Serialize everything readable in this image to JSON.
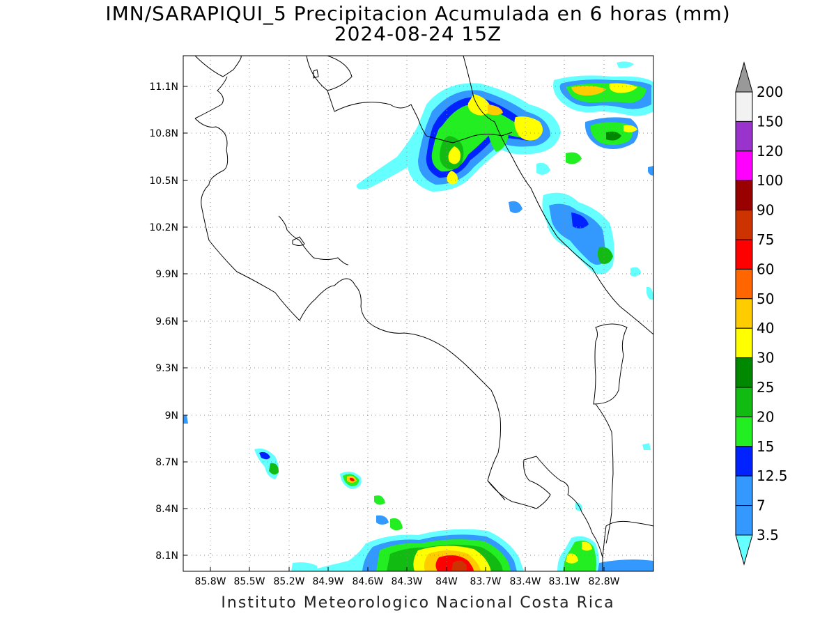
{
  "title": {
    "line1": "IMN/SARAPIQUI_5 Precipitacion Acumulada en 6 horas (mm)",
    "line2": "2024-08-24 15Z"
  },
  "footer": "Instituto Meteorologico Nacional Costa Rica",
  "map": {
    "lon_range": [
      -86.04,
      -82.64
    ],
    "lat_range": [
      8.01,
      11.31
    ],
    "lat_ticks": [
      "11.1N",
      "10.8N",
      "10.5N",
      "10.2N",
      "9.9N",
      "9.6N",
      "9.3N",
      "9N",
      "8.7N",
      "8.4N",
      "8.1N"
    ],
    "lon_ticks": [
      "85.8W",
      "85.5W",
      "85.2W",
      "84.9W",
      "84.6W",
      "84.3W",
      "84W",
      "83.7W",
      "83.4W",
      "83.1W",
      "82.8W"
    ],
    "grid": "dotted",
    "coastline_color": "#000000"
  },
  "colorbar": {
    "levels": [
      "3.5",
      "7",
      "12.5",
      "15",
      "20",
      "25",
      "30",
      "40",
      "50",
      "60",
      "75",
      "90",
      "100",
      "120",
      "150",
      "200"
    ],
    "colors": [
      "#66ffff",
      "#3399ff",
      "#0022ff",
      "#22ee22",
      "#11bb11",
      "#008800",
      "#ffff00",
      "#ffcc00",
      "#ff6600",
      "#ff0000",
      "#cc3300",
      "#990000",
      "#ff00ff",
      "#9933cc",
      "#f2f2f2",
      "#999999"
    ],
    "units": "mm"
  },
  "precip_cells": [
    {
      "lon": -83.95,
      "lat": 10.95,
      "peak": "30"
    },
    {
      "lon": -84.0,
      "lat": 10.6,
      "peak": "40"
    },
    {
      "lon": -83.55,
      "lat": 10.9,
      "peak": "40"
    },
    {
      "lon": -82.95,
      "lat": 11.08,
      "peak": "40"
    },
    {
      "lon": -82.95,
      "lat": 10.82,
      "peak": "25"
    },
    {
      "lon": -83.15,
      "lat": 10.25,
      "peak": "12.5"
    },
    {
      "lon": -82.95,
      "lat": 10.05,
      "peak": "25"
    },
    {
      "lon": -84.0,
      "lat": 8.1,
      "peak": "90"
    },
    {
      "lon": -84.85,
      "lat": 8.55,
      "peak": "60"
    },
    {
      "lon": -85.35,
      "lat": 8.68,
      "peak": "25"
    },
    {
      "lon": -83.1,
      "lat": 8.12,
      "peak": "40"
    }
  ]
}
